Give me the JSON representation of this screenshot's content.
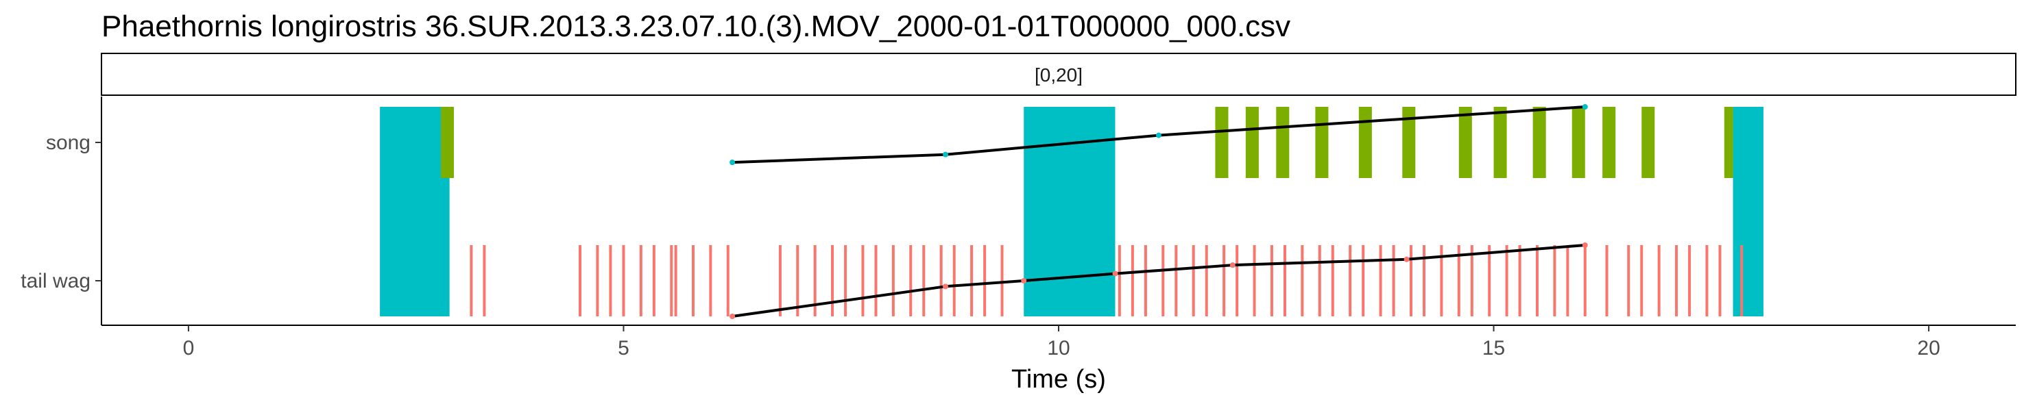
{
  "chart_data": {
    "type": "bar",
    "title": "Phaethornis longirostris   36.SUR.2013.3.23.07.10.(3).MOV_2000-01-01T000000_000.csv",
    "facet_label": "[0,20]",
    "xlabel": "Time (s)",
    "ylabel": "",
    "xlim": [
      -1,
      21
    ],
    "x_ticks": [
      {
        "value": 0,
        "label": "0"
      },
      {
        "value": 5,
        "label": "5"
      },
      {
        "value": 10,
        "label": "10"
      },
      {
        "value": 15,
        "label": "15"
      },
      {
        "value": 20,
        "label": "20"
      }
    ],
    "categories": [
      "song",
      "tail wag"
    ],
    "grid": false,
    "colors": {
      "cyan": "#00bfc4",
      "green": "#7cae00",
      "red": "#f8766d",
      "line": "#000000"
    },
    "cyan_blocks": [
      {
        "start": 2.2,
        "end": 3.0
      },
      {
        "start": 9.6,
        "end": 10.65
      },
      {
        "start": 17.75,
        "end": 18.1
      }
    ],
    "song_events": [
      [
        2.9,
        3.05
      ],
      [
        11.8,
        11.95
      ],
      [
        12.15,
        12.3
      ],
      [
        12.5,
        12.65
      ],
      [
        12.95,
        13.1
      ],
      [
        13.45,
        13.6
      ],
      [
        13.95,
        14.1
      ],
      [
        14.6,
        14.75
      ],
      [
        15.0,
        15.15
      ],
      [
        15.45,
        15.6
      ],
      [
        15.9,
        16.05
      ],
      [
        16.25,
        16.4
      ],
      [
        16.7,
        16.85
      ],
      [
        17.65,
        17.75
      ]
    ],
    "tail_wag_events": [
      3.25,
      3.4,
      4.5,
      4.7,
      4.85,
      5.0,
      5.2,
      5.35,
      5.55,
      5.6,
      5.8,
      6.0,
      6.2,
      6.8,
      7.0,
      7.2,
      7.4,
      7.55,
      7.75,
      7.9,
      8.1,
      8.3,
      8.45,
      8.65,
      8.8,
      9.0,
      9.15,
      9.35,
      10.7,
      10.85,
      11.0,
      11.2,
      11.35,
      11.55,
      11.7,
      11.9,
      12.05,
      12.25,
      12.45,
      12.6,
      12.8,
      13.0,
      13.15,
      13.35,
      13.5,
      13.7,
      13.85,
      14.05,
      14.2,
      14.4,
      14.6,
      14.75,
      14.95,
      15.15,
      15.3,
      15.5,
      15.7,
      15.85,
      16.05,
      16.3,
      16.55,
      16.7,
      16.9,
      17.1,
      17.25,
      17.45,
      17.6,
      17.85
    ],
    "song_trend": [
      {
        "x": 6.25,
        "y": 0.22
      },
      {
        "x": 8.7,
        "y": 0.33
      },
      {
        "x": 11.15,
        "y": 0.6
      },
      {
        "x": 16.05,
        "y": 1.0
      }
    ],
    "tail_wag_trend": [
      {
        "x": 6.25,
        "y": 0.0
      },
      {
        "x": 8.7,
        "y": 0.42
      },
      {
        "x": 9.6,
        "y": 0.5
      },
      {
        "x": 10.65,
        "y": 0.6
      },
      {
        "x": 12.0,
        "y": 0.72
      },
      {
        "x": 14.0,
        "y": 0.8
      },
      {
        "x": 16.05,
        "y": 1.0
      }
    ]
  }
}
